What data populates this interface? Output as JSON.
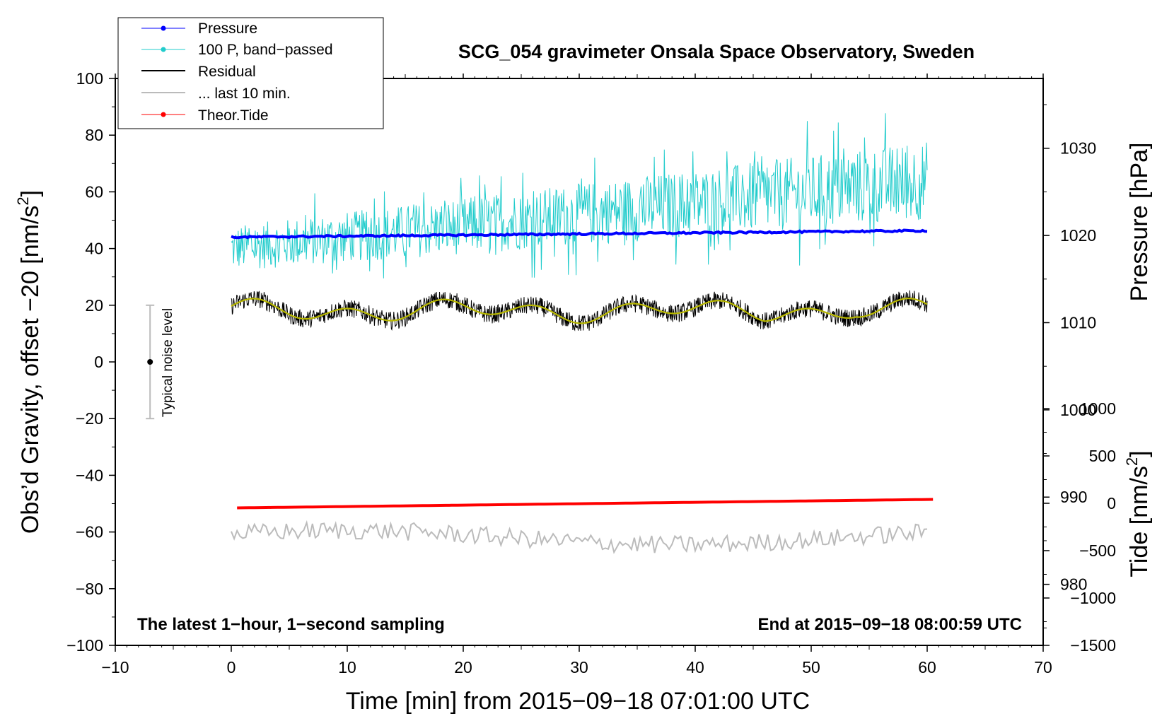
{
  "chart_data": {
    "type": "line",
    "title": "SCG_054 gravimeter Onsala Space Observatory, Sweden",
    "xlabel": "Time [min] from 2015−09−18 07:01:00 UTC",
    "ylabel": "Obs’d Gravity, offset −20 [nm/s",
    "ylabel_sup": "2",
    "ylabel_end": "]",
    "y2label": "Pressure [hPa]",
    "y3label": "Tide [nm/s",
    "y3label_sup": "2",
    "y3label_end": "]",
    "xlim": [
      -10,
      70
    ],
    "ylim": [
      -100,
      100
    ],
    "x_ticks": [
      -10,
      0,
      10,
      20,
      30,
      40,
      50,
      60,
      70
    ],
    "x_tick_labels": [
      "−10",
      "0",
      "10",
      "20",
      "30",
      "40",
      "50",
      "60",
      "70"
    ],
    "y_ticks": [
      -100,
      -80,
      -60,
      -40,
      -20,
      0,
      20,
      40,
      60,
      80,
      100
    ],
    "y_tick_labels": [
      "−100",
      "−80",
      "−60",
      "−40",
      "−20",
      "0",
      "20",
      "40",
      "60",
      "80",
      "100"
    ],
    "pressure_axis": {
      "ticks": [
        980,
        990,
        1000,
        1010,
        1020,
        1030
      ],
      "tick_labels": [
        "980",
        "990",
        "1000",
        "1010",
        "1020",
        "1030"
      ],
      "range": [
        973,
        1038
      ]
    },
    "tide_axis": {
      "ticks": [
        -1500,
        -1000,
        -500,
        0,
        500,
        1000
      ],
      "tick_labels": [
        "−1500",
        "−1000",
        "−500",
        "0",
        "500",
        "1000"
      ]
    },
    "annotations": {
      "bottom_left": "The latest 1−hour, 1−second sampling",
      "bottom_right": "End at 2015−09−18 08:00:59 UTC",
      "noise_label": "Typical noise level"
    },
    "noise_bar": {
      "x": -7,
      "center": 0,
      "low": -20,
      "high": 20
    },
    "legend": [
      {
        "label": "Pressure",
        "color": "#0000ff",
        "marker": true
      },
      {
        "label": "100 P, band−passed",
        "color": "#22cccc",
        "marker": true
      },
      {
        "label": "Residual",
        "color": "#000000",
        "marker": false
      },
      {
        "label": "... last 10 min.",
        "color": "#bbbbbb",
        "marker": false
      },
      {
        "label": "Theor.Tide",
        "color": "#ff0000",
        "marker": true
      }
    ],
    "series": [
      {
        "name": "Pressure",
        "color": "#0000ff",
        "approx_start": 44,
        "approx_end": 46.3
      },
      {
        "name": "100 P, band−passed",
        "color": "#22cccc",
        "approx_mean_start": 40,
        "approx_mean_end": 64
      },
      {
        "name": "Residual",
        "color": "#000000",
        "approx_mean": 18
      },
      {
        "name": "Residual smoothed",
        "color": "#b8b800",
        "approx_mean": 18
      },
      {
        "name": "Theor.Tide",
        "color": "#ff0000",
        "approx_start": -51.5,
        "approx_end": -48.5
      },
      {
        "name": "... last 10 min.",
        "color": "#bbbbbb",
        "approx_mean": -62
      }
    ]
  }
}
